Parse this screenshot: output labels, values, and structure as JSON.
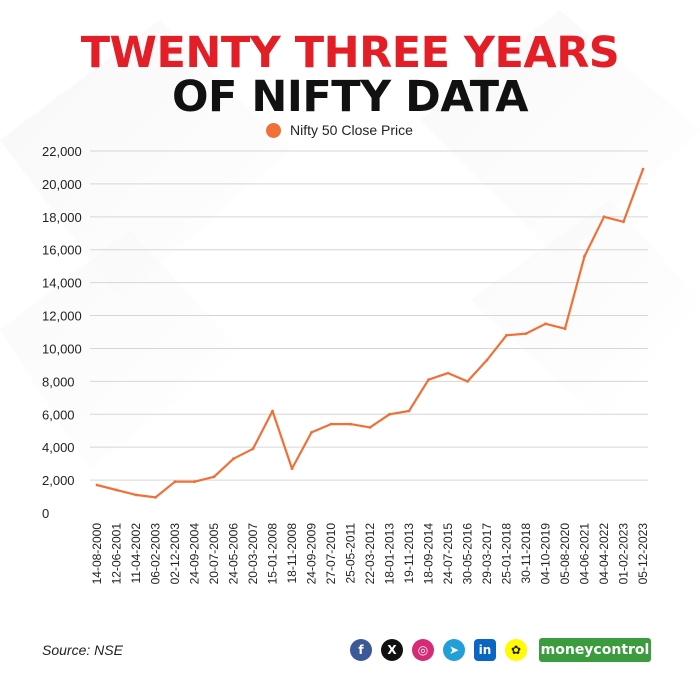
{
  "header": {
    "title_line1": "TWENTY THREE YEARS",
    "title_line2": "OF NIFTY DATA"
  },
  "footer": {
    "source": "Source: NSE",
    "brand": "moneycontrol",
    "social_icons": [
      "facebook-icon",
      "x-icon",
      "instagram-icon",
      "telegram-icon",
      "linkedin-icon",
      "snapchat-icon"
    ]
  },
  "colors": {
    "title_red": "#e41e26",
    "series": "#f07038",
    "grid": "#d6d6d6",
    "brand_green": "#3a9c3d"
  },
  "chart_data": {
    "type": "line",
    "title": "",
    "xlabel": "",
    "ylabel": "",
    "ylim": [
      0,
      22000
    ],
    "yticks": [
      "0",
      "2,000",
      "4,000",
      "6,000",
      "8,000",
      "10,000",
      "12,000",
      "14,000",
      "16,000",
      "18,000",
      "20,000",
      "22,000"
    ],
    "xtick_labels": [
      "14-08-2000",
      "12-06-2001",
      "11-04-2002",
      "06-02-2003",
      "02-12-2003",
      "24-09-2004",
      "20-07-2005",
      "24-05-2006",
      "20-03-2007",
      "15-01-2008",
      "18-11-2008",
      "24-09-2009",
      "27-07-2010",
      "25-05-2011",
      "22-03-2012",
      "18-01-2013",
      "19-11-2013",
      "18-09-2014",
      "24-07-2015",
      "30-05-2016",
      "29-03-2017",
      "25-01-2018",
      "30-11-2018",
      "04-10-2019",
      "05-08-2020",
      "04-06-2021",
      "04-04-2022",
      "01-02-2023",
      "05-12-2023"
    ],
    "grid": true,
    "legend_position": "top-center",
    "series": [
      {
        "name": "Nifty 50 Close Price",
        "x": [
          "14-08-2000",
          "12-06-2001",
          "11-04-2002",
          "06-02-2003",
          "02-12-2003",
          "24-09-2004",
          "20-07-2005",
          "24-05-2006",
          "20-03-2007",
          "15-01-2008",
          "18-11-2008",
          "24-09-2009",
          "27-07-2010",
          "25-05-2011",
          "22-03-2012",
          "18-01-2013",
          "19-11-2013",
          "18-09-2014",
          "24-07-2015",
          "30-05-2016",
          "29-03-2017",
          "25-01-2018",
          "30-11-2018",
          "04-10-2019",
          "05-08-2020",
          "04-06-2021",
          "04-04-2022",
          "01-02-2023",
          "05-12-2023"
        ],
        "values": [
          1700,
          1400,
          1100,
          950,
          1900,
          1900,
          2200,
          3300,
          3900,
          6200,
          2700,
          4900,
          5400,
          5400,
          5200,
          6000,
          6200,
          8100,
          8500,
          8000,
          9300,
          10800,
          10900,
          11500,
          11200,
          15600,
          18000,
          17700,
          20900
        ]
      }
    ]
  }
}
